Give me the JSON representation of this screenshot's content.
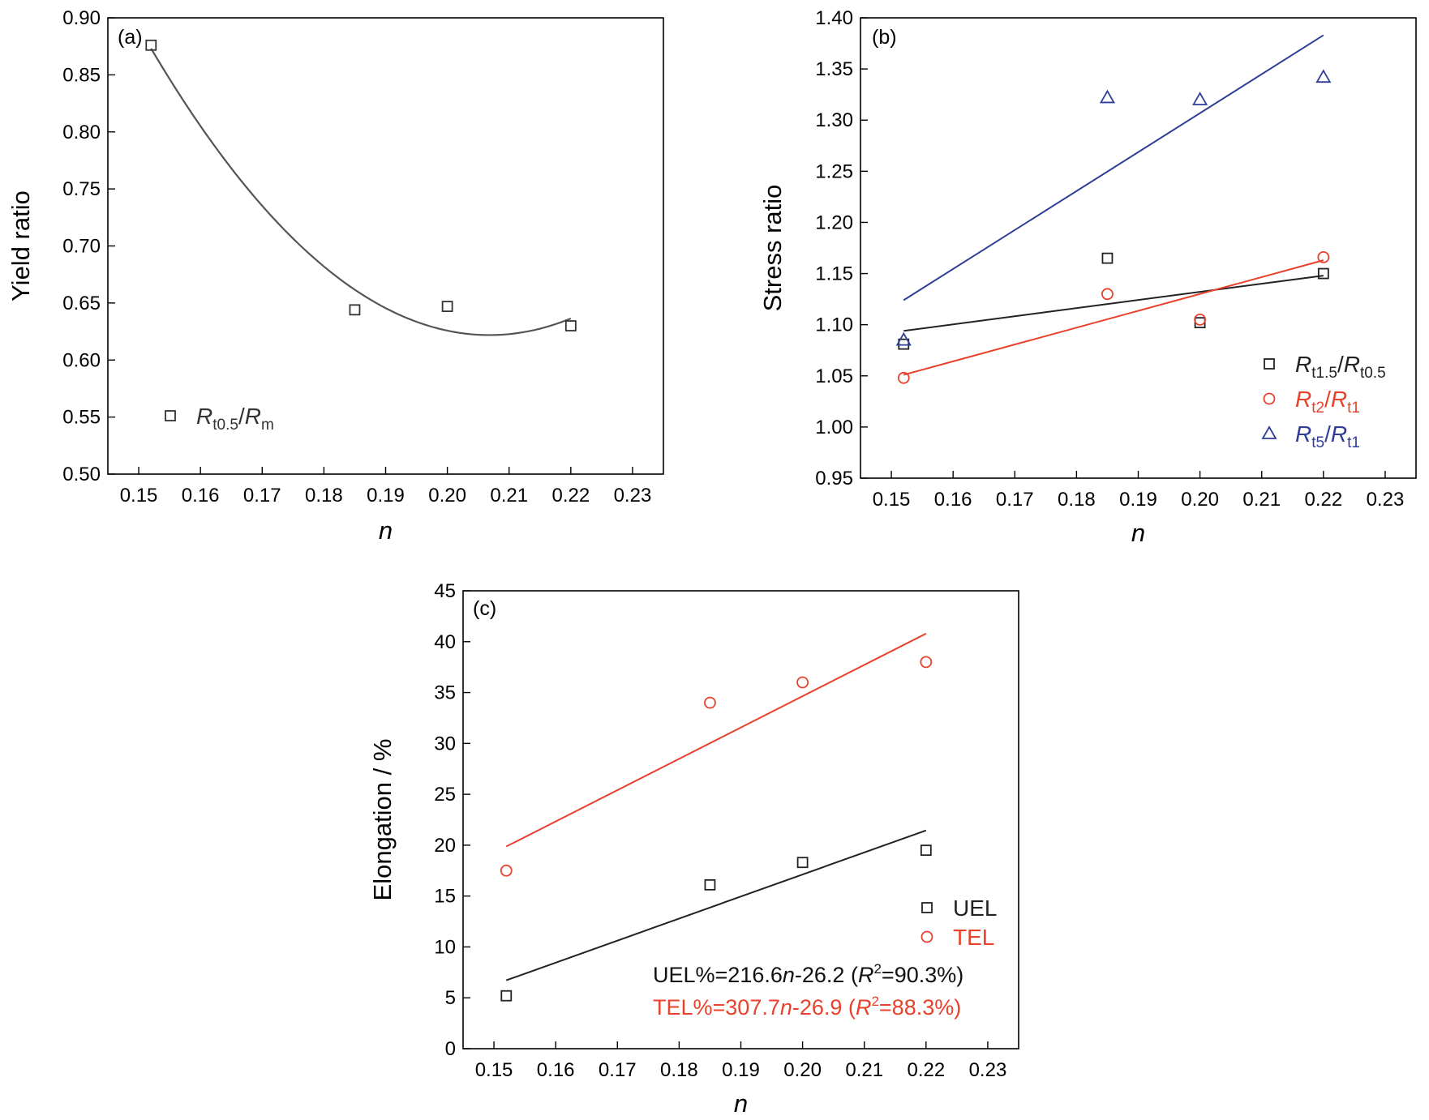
{
  "chart_data": [
    {
      "panel_label": "(a)",
      "type": "scatter",
      "xlabel": "n",
      "ylabel": "Yield ratio",
      "xlim": [
        0.145,
        0.235
      ],
      "ylim": [
        0.5,
        0.9
      ],
      "xticks": [
        "0.15",
        "0.16",
        "0.17",
        "0.18",
        "0.19",
        "0.20",
        "0.21",
        "0.22",
        "0.23"
      ],
      "yticks": [
        "0.50",
        "0.55",
        "0.60",
        "0.65",
        "0.70",
        "0.75",
        "0.80",
        "0.85",
        "0.90"
      ],
      "legend_position": "bottom-left",
      "series": [
        {
          "legend": {
            "main": "R",
            "sub1": "t0.5",
            "sep": "/",
            "main2": "R",
            "sub2": "m"
          },
          "marker": "square",
          "color": "#333333",
          "x": [
            0.152,
            0.185,
            0.2,
            0.22
          ],
          "y": [
            0.876,
            0.644,
            0.647,
            0.63
          ],
          "fit": {
            "kind": "quadratic",
            "x_range": [
              0.152,
              0.22
            ],
            "color": "#555555"
          }
        }
      ]
    },
    {
      "panel_label": "(b)",
      "type": "scatter",
      "xlabel": "n",
      "ylabel": "Stress ratio",
      "xlim": [
        0.145,
        0.235
      ],
      "ylim": [
        0.95,
        1.4
      ],
      "xticks": [
        "0.15",
        "0.16",
        "0.17",
        "0.18",
        "0.19",
        "0.20",
        "0.21",
        "0.22",
        "0.23"
      ],
      "yticks": [
        "0.95",
        "1.00",
        "1.05",
        "1.10",
        "1.15",
        "1.20",
        "1.25",
        "1.30",
        "1.35",
        "1.40"
      ],
      "legend_position": "bottom-right",
      "series": [
        {
          "legend": {
            "main": "R",
            "sub1": "t1.5",
            "sep": "/",
            "main2": "R",
            "sub2": "t0.5"
          },
          "marker": "square",
          "color": "#222222",
          "x": [
            0.152,
            0.185,
            0.2,
            0.22
          ],
          "y": [
            1.081,
            1.165,
            1.102,
            1.15
          ],
          "fit": {
            "kind": "linear",
            "x_range": [
              0.152,
              0.22
            ],
            "y_range": [
              1.094,
              1.148
            ]
          }
        },
        {
          "legend": {
            "main": "R",
            "sub1": "t2",
            "sep": "/",
            "main2": "R",
            "sub2": "t1"
          },
          "marker": "circle",
          "color": "#e8412c",
          "x": [
            0.152,
            0.185,
            0.2,
            0.22
          ],
          "y": [
            1.048,
            1.13,
            1.105,
            1.166
          ],
          "fit": {
            "kind": "linear",
            "x_range": [
              0.152,
              0.22
            ],
            "y_range": [
              1.051,
              1.163
            ]
          }
        },
        {
          "legend": {
            "main": "R",
            "sub1": "t5",
            "sep": "/",
            "main2": "R",
            "sub2": "t1"
          },
          "marker": "triangle",
          "color": "#2f3d96",
          "x": [
            0.152,
            0.185,
            0.2,
            0.22
          ],
          "y": [
            1.085,
            1.322,
            1.32,
            1.342
          ],
          "fit": {
            "kind": "linear",
            "x_range": [
              0.152,
              0.22
            ],
            "y_range": [
              1.124,
              1.383
            ]
          }
        }
      ]
    },
    {
      "panel_label": "(c)",
      "type": "scatter",
      "xlabel": "n",
      "ylabel": "Elongation / %",
      "xlim": [
        0.145,
        0.235
      ],
      "ylim": [
        0,
        45
      ],
      "xticks": [
        "0.15",
        "0.16",
        "0.17",
        "0.18",
        "0.19",
        "0.20",
        "0.21",
        "0.22",
        "0.23"
      ],
      "yticks": [
        "0",
        "5",
        "10",
        "15",
        "20",
        "25",
        "30",
        "35",
        "40",
        "45"
      ],
      "legend_position": "bottom-right",
      "series": [
        {
          "name": "UEL",
          "marker": "square",
          "color": "#222222",
          "x": [
            0.152,
            0.185,
            0.2,
            0.22
          ],
          "y": [
            5.2,
            16.1,
            18.3,
            19.5
          ],
          "fit": {
            "kind": "linear",
            "x_range": [
              0.152,
              0.22
            ],
            "slope": 216.6,
            "intercept": -26.2
          }
        },
        {
          "name": "TEL",
          "marker": "circle",
          "color": "#e8412c",
          "x": [
            0.152,
            0.185,
            0.2,
            0.22
          ],
          "y": [
            17.5,
            34.0,
            36.0,
            38.0
          ],
          "fit": {
            "kind": "linear",
            "x_range": [
              0.152,
              0.22
            ],
            "slope": 307.7,
            "intercept": -26.9
          }
        }
      ],
      "annotations": [
        {
          "p1": "UEL%=216.6",
          "n": "n",
          "p2": "-26.2  (",
          "R": "R",
          "sup": "2",
          "p3": "=90.3%)",
          "color": "#111111"
        },
        {
          "p1": "TEL%=307.7",
          "n": "n",
          "p2": "-26.9  (",
          "R": "R",
          "sup": "2",
          "p3": "=88.3%)",
          "color": "#e8412c"
        }
      ]
    }
  ]
}
